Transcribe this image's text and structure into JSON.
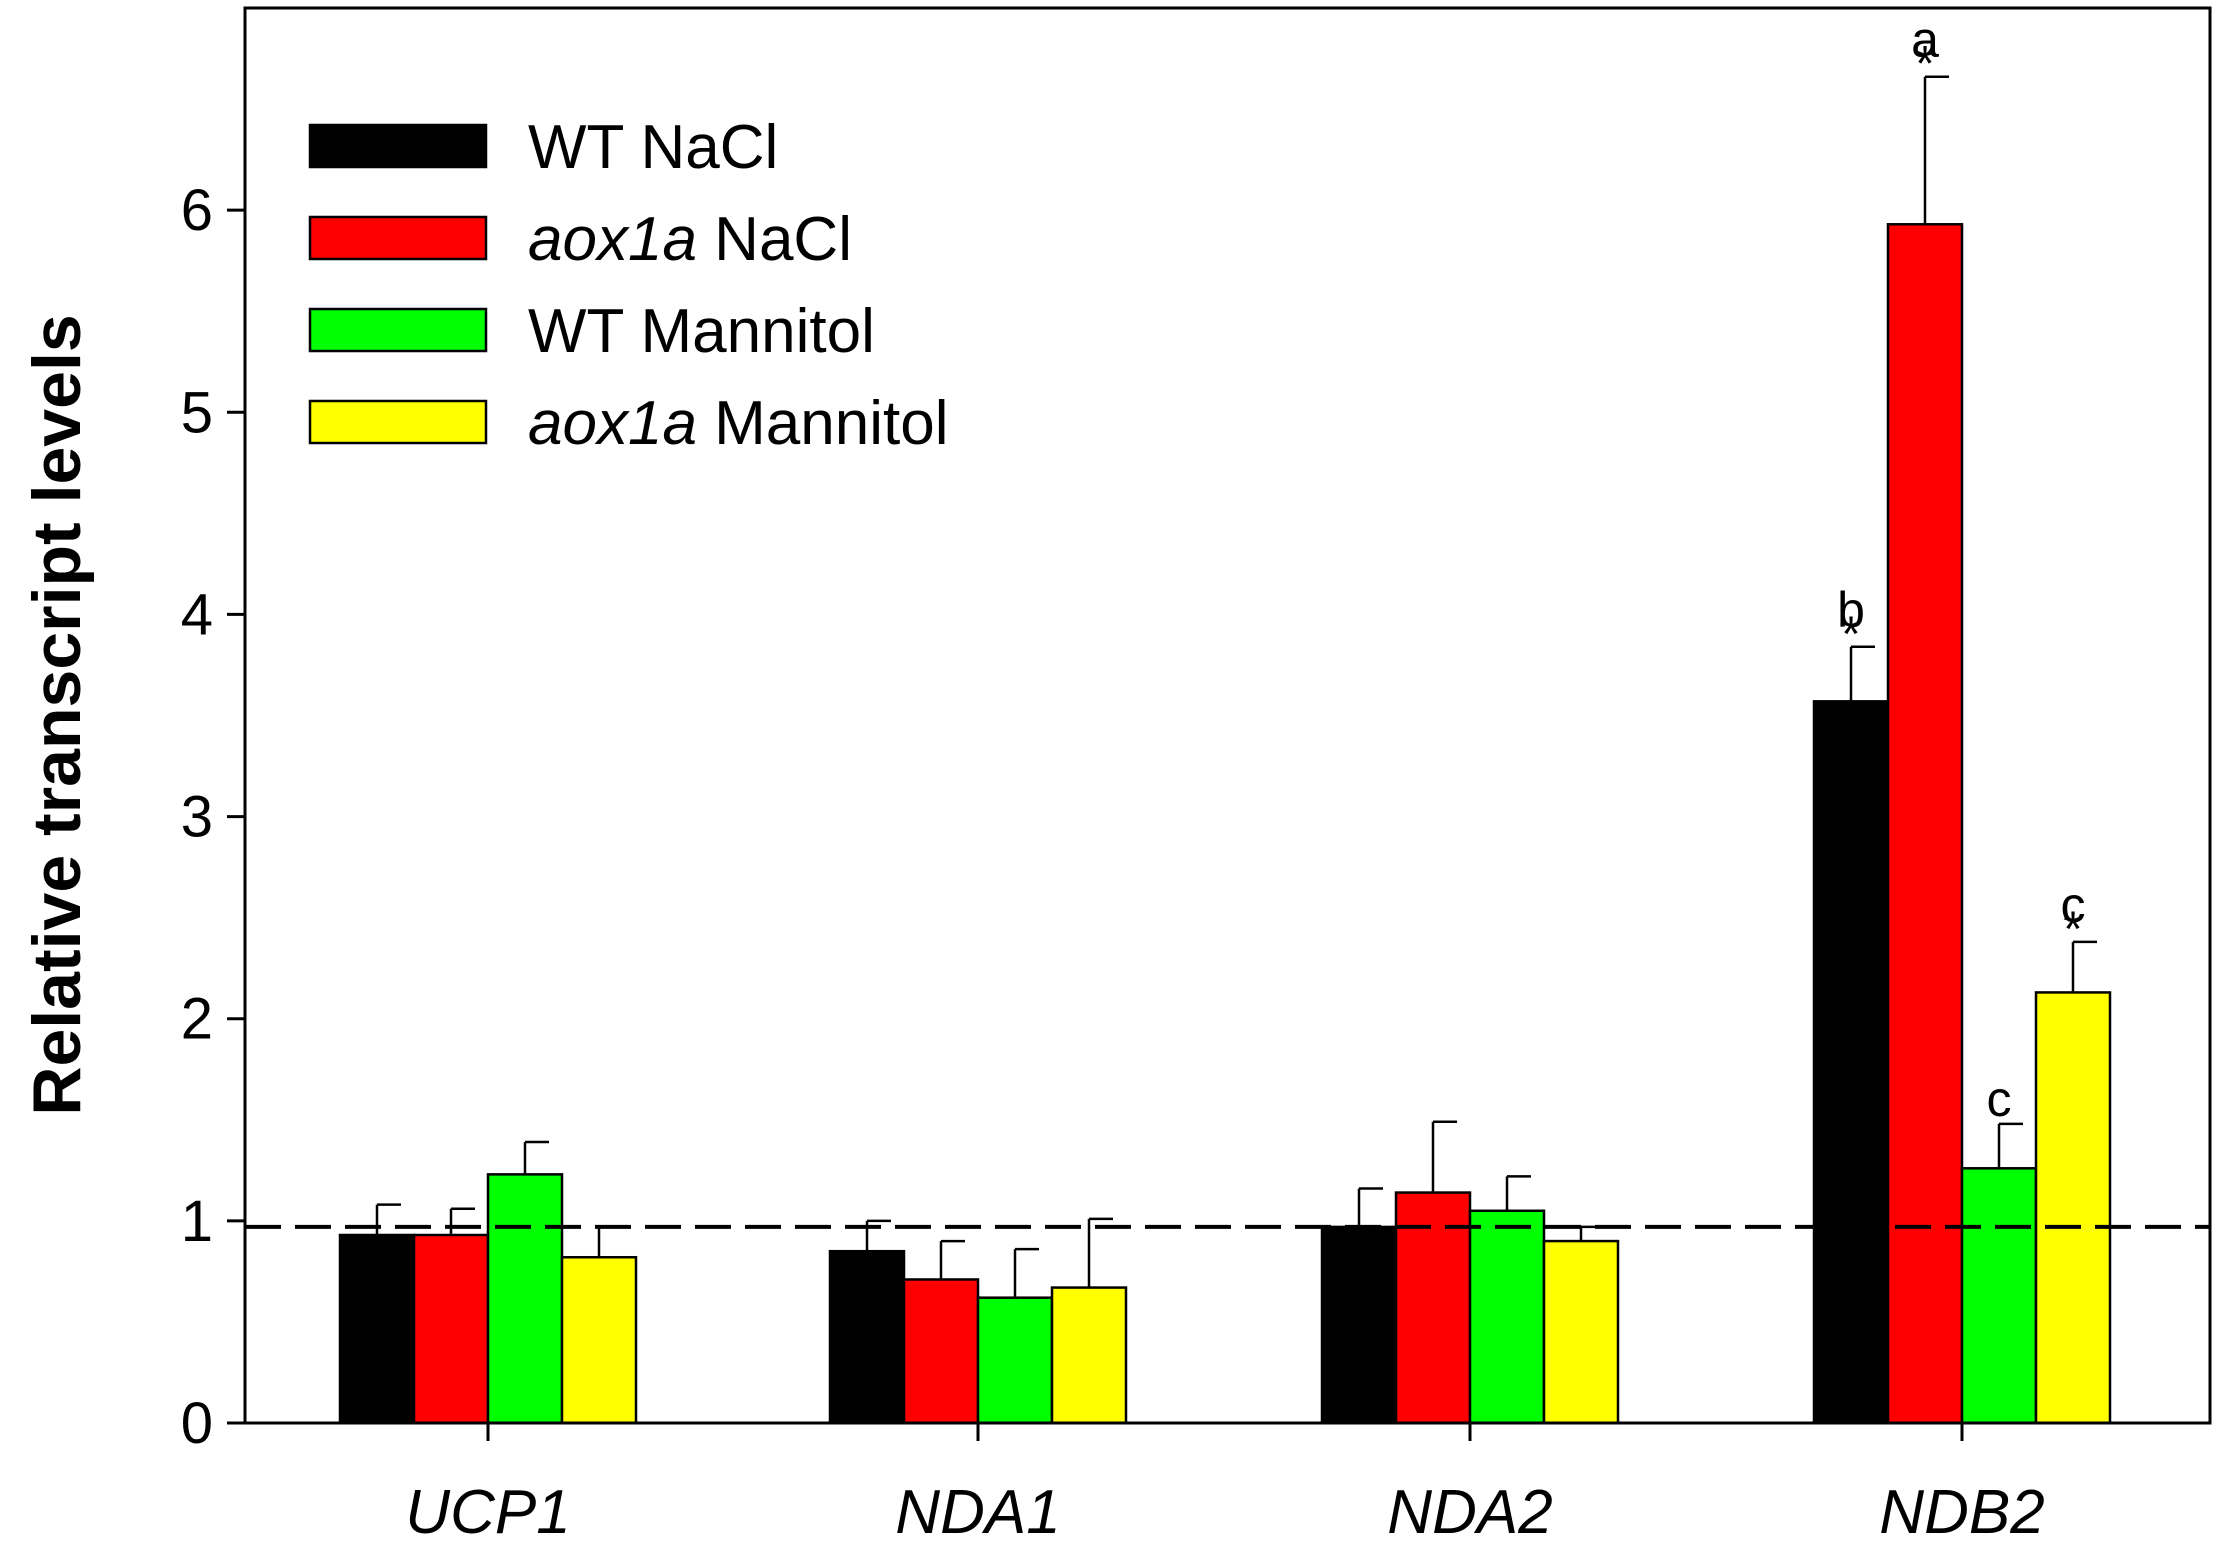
{
  "chart_data": {
    "type": "bar",
    "title": "",
    "xlabel": "",
    "ylabel": "Relative transcript levels",
    "ylim": [
      0,
      7
    ],
    "yticks": [
      0,
      1,
      2,
      3,
      4,
      5,
      6
    ],
    "ytick_labels": [
      "0",
      "1",
      "2",
      "3",
      "4",
      "5",
      "6"
    ],
    "categories": [
      "UCP1",
      "NDA1",
      "NDA2",
      "NDB2"
    ],
    "reference_line": 0.97,
    "series": [
      {
        "name": "WT NaCl",
        "name_italic": "",
        "name_rest": "WT NaCl",
        "color": "#000000",
        "values": [
          0.93,
          0.85,
          0.97,
          3.57
        ],
        "errors": [
          0.15,
          0.15,
          0.19,
          0.27
        ],
        "letters": [
          "",
          "",
          "",
          "b"
        ],
        "stars": [
          "",
          "",
          "",
          "*"
        ]
      },
      {
        "name": "aox1a NaCl",
        "name_italic": "aox1a",
        "name_rest": " NaCl",
        "color": "#ff0000",
        "values": [
          0.93,
          0.71,
          1.14,
          5.93
        ],
        "errors": [
          0.13,
          0.19,
          0.35,
          0.73
        ],
        "letters": [
          "",
          "",
          "",
          "a"
        ],
        "stars": [
          "",
          "",
          "",
          "*"
        ]
      },
      {
        "name": "WT Mannitol",
        "name_italic": "",
        "name_rest": "WT Mannitol",
        "color": "#00ff00",
        "values": [
          1.23,
          0.62,
          1.05,
          1.26
        ],
        "errors": [
          0.16,
          0.24,
          0.17,
          0.22
        ],
        "letters": [
          "",
          "",
          "",
          "c"
        ],
        "stars": [
          "",
          "",
          "",
          ""
        ]
      },
      {
        "name": "aox1a Mannitol",
        "name_italic": "aox1a",
        "name_rest": " Mannitol",
        "color": "#ffff00",
        "values": [
          0.82,
          0.67,
          0.9,
          2.13
        ],
        "errors": [
          0.15,
          0.34,
          0.07,
          0.25
        ],
        "letters": [
          "",
          "",
          "",
          "c"
        ],
        "stars": [
          "",
          "",
          "",
          "*"
        ]
      }
    ],
    "legend_position": "top-left"
  }
}
